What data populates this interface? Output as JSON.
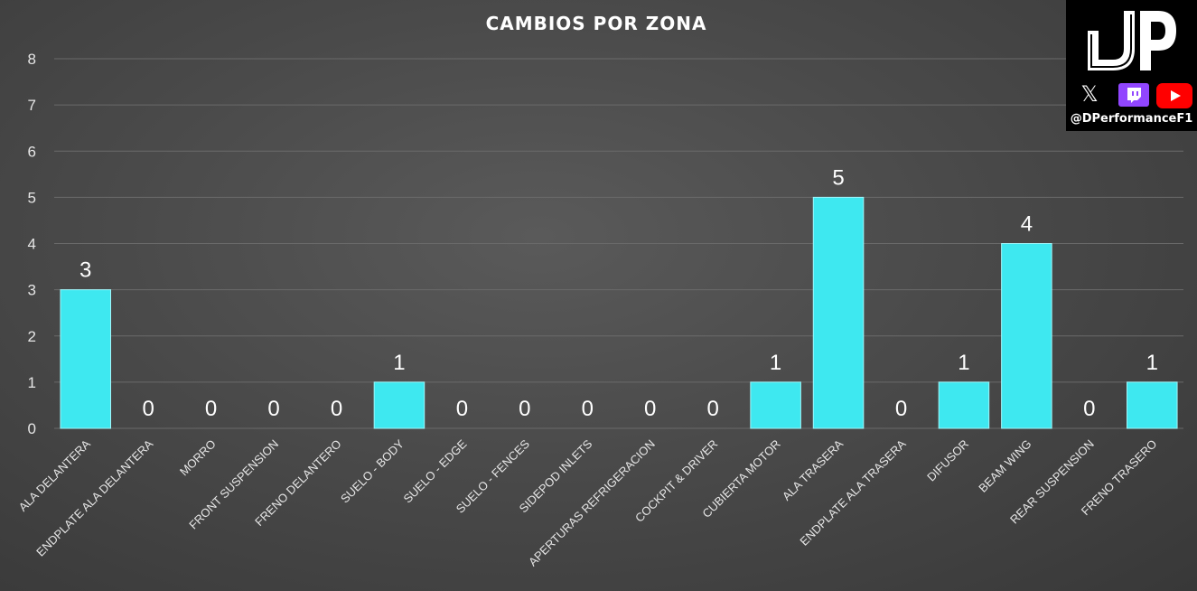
{
  "chart_data": {
    "type": "bar",
    "title": "CAMBIOS POR ZONA",
    "categories": [
      "ALA DELANTERA",
      "ENDPLATE ALA DELANTERA",
      "MORRO",
      "FRONT SUSPENSION",
      "FRENO DELANTERO",
      "SUELO - BODY",
      "SUELO - EDGE",
      "SUELO - FENCES",
      "SIDEPOD INLETS",
      "APERTURAS REFRIGERACION",
      "COCKPIT & DRIVER",
      "CUBIERTA MOTOR",
      "ALA TRASERA",
      "ENDPLATE ALA TRASERA",
      "DIFUSOR",
      "BEAM WING",
      "REAR SUSPENSION",
      "FRENO TRASERO"
    ],
    "values": [
      3,
      0,
      0,
      0,
      0,
      1,
      0,
      0,
      0,
      0,
      0,
      1,
      5,
      0,
      1,
      4,
      0,
      1
    ],
    "ylim": [
      0,
      8
    ],
    "yticks": [
      0,
      1,
      2,
      3,
      4,
      5,
      6,
      7,
      8
    ],
    "grid": true,
    "data_labels": true,
    "bar_color": "#3ee8f0"
  },
  "logo": {
    "socials": [
      "x-icon",
      "twitch-icon",
      "youtube-icon"
    ],
    "handle": "@DPerformanceF1"
  }
}
